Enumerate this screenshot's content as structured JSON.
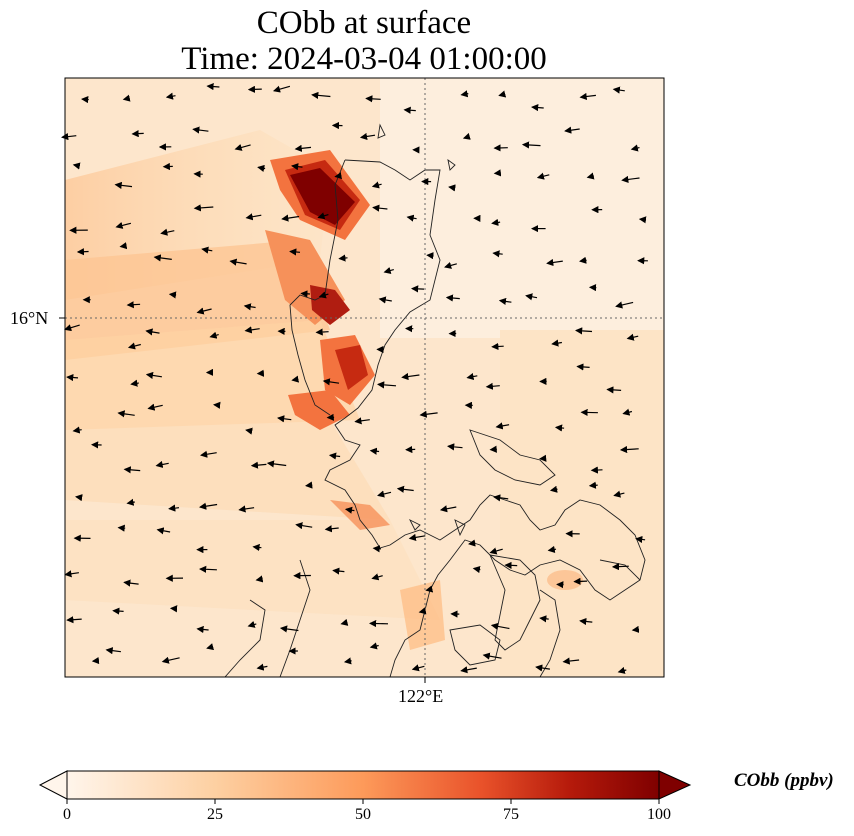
{
  "title": {
    "line1": "CObb at surface",
    "line2": "Time: 2024-03-04 01:00:00"
  },
  "map": {
    "lat_gridline_label": "16°N",
    "lon_gridline_label": "122°E",
    "field_variable": "CObb",
    "wind_vectors": "arrows pointing predominantly west / west-southwest",
    "high_concentration_regions": [
      "northwest Luzon coast",
      "Lingayen Gulf area",
      "western central Luzon coast"
    ]
  },
  "colorbar": {
    "label": "CObb (ppbv)",
    "min": 0,
    "max": 100,
    "ticks": [
      "0",
      "25",
      "50",
      "75",
      "100"
    ],
    "colors": [
      "#fff5eb",
      "#fdd9a9",
      "#fdab67",
      "#f3733f",
      "#c62a11",
      "#7f0000"
    ],
    "extend": "both"
  }
}
